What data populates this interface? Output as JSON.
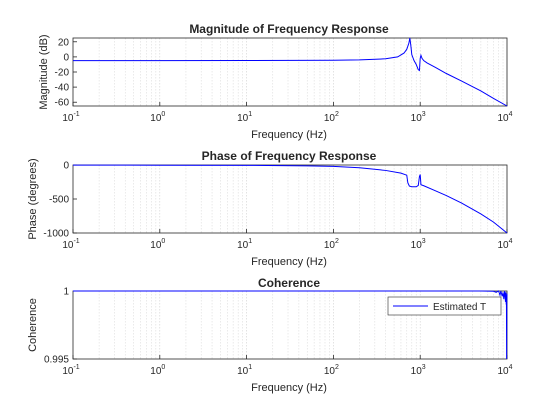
{
  "chart_data": [
    {
      "type": "line",
      "title": "Magnitude of Frequency Response",
      "xlabel": "Frequency (Hz)",
      "ylabel": "Magnitude (dB)",
      "xscale": "log",
      "xlim": [
        0.1,
        10000
      ],
      "ylim": [
        -65,
        25
      ],
      "x_ticks": [
        {
          "base": "10",
          "exp": "-1"
        },
        {
          "base": "10",
          "exp": "0"
        },
        {
          "base": "10",
          "exp": "1"
        },
        {
          "base": "10",
          "exp": "2"
        },
        {
          "base": "10",
          "exp": "3"
        },
        {
          "base": "10",
          "exp": "4"
        }
      ],
      "y_ticks": [
        "20",
        "0",
        "-20",
        "-40",
        "-60"
      ],
      "y_tick_values": [
        20,
        0,
        -20,
        -40,
        -60
      ],
      "grid": "x-minor",
      "color": "#0000ff",
      "series": [
        {
          "x": [
            0.1,
            1,
            10,
            100,
            200,
            400,
            550,
            650,
            700,
            740,
            760,
            780,
            800,
            850,
            900,
            950,
            980,
            1000,
            1020,
            1050,
            1100,
            1200,
            1500,
            2000,
            3000,
            5000,
            7000,
            10000
          ],
          "y": [
            -5,
            -5,
            -4.8,
            -4.5,
            -4,
            -2.5,
            0,
            5,
            10,
            18,
            25,
            15,
            3,
            -5,
            -10,
            -17,
            -18,
            -2,
            2,
            -2,
            -5,
            -8,
            -14,
            -22,
            -32,
            -45,
            -55,
            -65
          ]
        }
      ]
    },
    {
      "type": "line",
      "title": "Phase of Frequency Response",
      "xlabel": "Frequency (Hz)",
      "ylabel": "Phase (degrees)",
      "xscale": "log",
      "xlim": [
        0.1,
        10000
      ],
      "ylim": [
        -1000,
        0
      ],
      "x_ticks": [
        {
          "base": "10",
          "exp": "-1"
        },
        {
          "base": "10",
          "exp": "0"
        },
        {
          "base": "10",
          "exp": "1"
        },
        {
          "base": "10",
          "exp": "2"
        },
        {
          "base": "10",
          "exp": "3"
        },
        {
          "base": "10",
          "exp": "4"
        }
      ],
      "y_ticks": [
        "0",
        "-500",
        "-1000"
      ],
      "y_tick_values": [
        0,
        -500,
        -1000
      ],
      "grid": "x-minor",
      "color": "#0000ff",
      "series": [
        {
          "x": [
            0.1,
            1,
            10,
            50,
            100,
            200,
            400,
            600,
            700,
            720,
            750,
            800,
            900,
            950,
            980,
            1000,
            1020,
            1100,
            1500,
            2000,
            3000,
            5000,
            7000,
            10000
          ],
          "y": [
            -2,
            -3,
            -5,
            -12,
            -20,
            -40,
            -80,
            -120,
            -150,
            -260,
            -310,
            -320,
            -320,
            -300,
            -170,
            -140,
            -290,
            -305,
            -380,
            -450,
            -560,
            -720,
            -840,
            -1000
          ]
        }
      ]
    },
    {
      "type": "line",
      "title": "Coherence",
      "xlabel": "Frequency (Hz)",
      "ylabel": "Coherence",
      "xscale": "log",
      "xlim": [
        0.1,
        10000
      ],
      "ylim": [
        0.995,
        1
      ],
      "x_ticks": [
        {
          "base": "10",
          "exp": "-1"
        },
        {
          "base": "10",
          "exp": "0"
        },
        {
          "base": "10",
          "exp": "1"
        },
        {
          "base": "10",
          "exp": "2"
        },
        {
          "base": "10",
          "exp": "3"
        },
        {
          "base": "10",
          "exp": "4"
        }
      ],
      "y_ticks": [
        "1",
        "0.995"
      ],
      "y_tick_values": [
        1,
        0.995
      ],
      "grid": "x-minor",
      "color": "#0000ff",
      "legend": {
        "entries": [
          "Estimated T"
        ],
        "placement": "top-right"
      },
      "series": [
        {
          "name": "Estimated T",
          "x": [
            0.1,
            1,
            10,
            100,
            1000,
            5000,
            7000,
            7500,
            8000,
            8300,
            8500,
            8800,
            9000,
            9200,
            9400,
            9500,
            9600,
            9700,
            9800,
            9850,
            9900,
            9950,
            10000
          ],
          "y": [
            1,
            1,
            1,
            1,
            1,
            1,
            0.99998,
            0.9999,
            1,
            0.9997,
            1,
            0.9996,
            0.9999,
            0.9994,
            1,
            0.9997,
            0.9992,
            0.9999,
            0.999,
            0.9995,
            0.995,
            0.9992,
            0.9998
          ]
        }
      ]
    }
  ]
}
